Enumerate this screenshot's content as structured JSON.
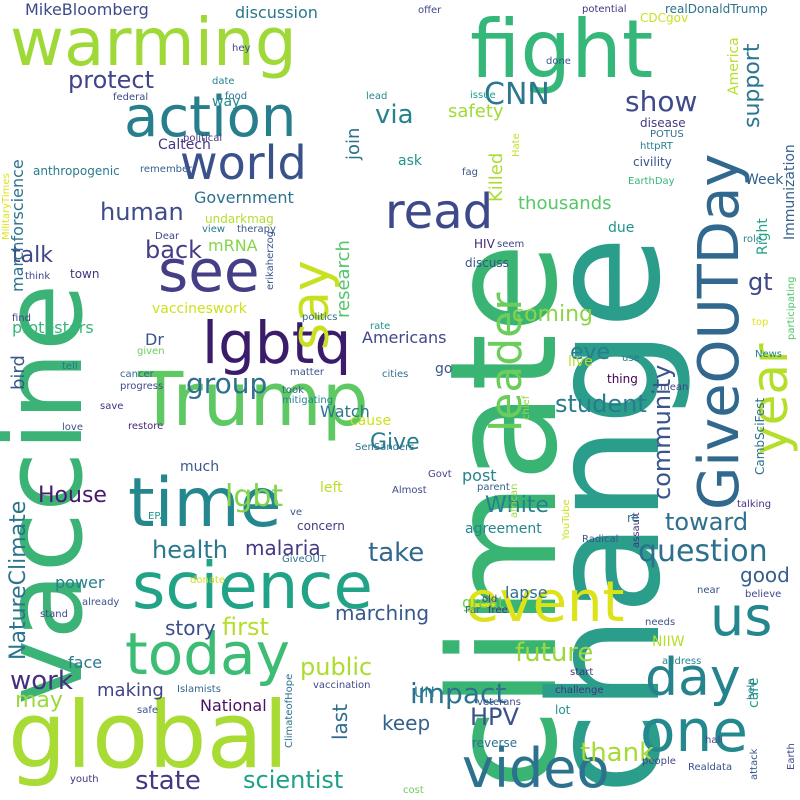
{
  "words": [
    {
      "text": "climate",
      "color": "#3ab473"
    },
    {
      "text": "change",
      "color": "#2a9d8b"
    },
    {
      "text": "vaccine",
      "color": "#3bb377"
    },
    {
      "text": "global",
      "color": "#a8db34"
    },
    {
      "text": "warming",
      "color": "#9fd938"
    },
    {
      "text": "fight",
      "color": "#35b779"
    },
    {
      "text": "Trump",
      "color": "#5ec962"
    },
    {
      "text": "science",
      "color": "#20a386"
    },
    {
      "text": "GiveOUTDay",
      "color": "#31688e"
    },
    {
      "text": "lgbtq",
      "color": "#3b1c6b"
    },
    {
      "text": "time",
      "color": "#24878e"
    },
    {
      "text": "today",
      "color": "#3dbc74"
    },
    {
      "text": "action",
      "color": "#277f8e"
    },
    {
      "text": "see",
      "color": "#433e85"
    },
    {
      "text": "video",
      "color": "#2c728e"
    },
    {
      "text": "event",
      "color": "#dde318"
    },
    {
      "text": "one",
      "color": "#23898e"
    },
    {
      "text": "say",
      "color": "#c8e020"
    },
    {
      "text": "us",
      "color": "#24878e"
    },
    {
      "text": "read",
      "color": "#3e4989"
    },
    {
      "text": "world",
      "color": "#3b518b"
    },
    {
      "text": "day",
      "color": "#25838e"
    },
    {
      "text": "year",
      "color": "#b5de2b"
    },
    {
      "text": "leader",
      "color": "#6ccd5a"
    },
    {
      "text": "question",
      "color": "#2d708e"
    },
    {
      "text": "community",
      "color": "#39568c"
    },
    {
      "text": "group",
      "color": "#2e6e8e"
    },
    {
      "text": "lgbt",
      "color": "#84d44b"
    },
    {
      "text": "show",
      "color": "#3e4a89"
    },
    {
      "text": "health",
      "color": "#29798e"
    },
    {
      "text": "CNN",
      "color": "#2a778e"
    },
    {
      "text": "impact",
      "color": "#2c728e"
    },
    {
      "text": "take",
      "color": "#31688e"
    },
    {
      "text": "state",
      "color": "#453882"
    },
    {
      "text": "scientist",
      "color": "#1fa088"
    },
    {
      "text": "support",
      "color": "#2a778e"
    },
    {
      "text": "future",
      "color": "#9bd93c"
    },
    {
      "text": "work",
      "color": "#46307e"
    },
    {
      "text": "human",
      "color": "#3e4c8a"
    },
    {
      "text": "protect",
      "color": "#404588"
    },
    {
      "text": "back",
      "color": "#433e85"
    },
    {
      "text": "NatureClimate",
      "color": "#2c738e"
    },
    {
      "text": "Give",
      "color": "#277f8e"
    },
    {
      "text": "student",
      "color": "#287c8e"
    },
    {
      "text": "White",
      "color": "#26828e"
    },
    {
      "text": "House",
      "color": "#48186a"
    },
    {
      "text": "toward",
      "color": "#2d708e"
    },
    {
      "text": "first",
      "color": "#b5de2b"
    },
    {
      "text": "public",
      "color": "#addc30"
    },
    {
      "text": "HPV",
      "color": "#3b518b"
    },
    {
      "text": "thank",
      "color": "#a5db36"
    },
    {
      "text": "via",
      "color": "#26828e"
    },
    {
      "text": "talk",
      "color": "#3f4788"
    },
    {
      "text": "gt",
      "color": "#3e4989"
    },
    {
      "text": "coming",
      "color": "#8bd646"
    },
    {
      "text": "eye",
      "color": "#287d8e"
    },
    {
      "text": "good",
      "color": "#355f8d"
    },
    {
      "text": "marching",
      "color": "#38588c"
    },
    {
      "text": "story",
      "color": "#3d4e8a"
    },
    {
      "text": "malaria",
      "color": "#443983"
    },
    {
      "text": "keep",
      "color": "#33638d"
    },
    {
      "text": "last",
      "color": "#2e6d8e"
    },
    {
      "text": "may",
      "color": "#9bd93c"
    },
    {
      "text": "making",
      "color": "#414487"
    },
    {
      "text": "face",
      "color": "#2a788e"
    },
    {
      "text": "power",
      "color": "#27808e"
    },
    {
      "text": "National",
      "color": "#471164"
    },
    {
      "text": "safety",
      "color": "#a2da37"
    },
    {
      "text": "research",
      "color": "#52c569"
    },
    {
      "text": "Killed",
      "color": "#addc30"
    },
    {
      "text": "thousands",
      "color": "#56c667"
    },
    {
      "text": "join",
      "color": "#2d708e"
    },
    {
      "text": "Government",
      "color": "#2d718e"
    },
    {
      "text": "mRNA",
      "color": "#86d549"
    },
    {
      "text": "Dr",
      "color": "#3b528b"
    },
    {
      "text": "Americans",
      "color": "#3f4889"
    },
    {
      "text": "bird",
      "color": "#38588c"
    },
    {
      "text": "protesters",
      "color": "#35b779"
    },
    {
      "text": "vaccineswork",
      "color": "#cde11d"
    },
    {
      "text": "marchforscience",
      "color": "#2c728e"
    },
    {
      "text": "MikeBloomberg",
      "color": "#3e4a89"
    },
    {
      "text": "discussion",
      "color": "#2a778e"
    },
    {
      "text": "way",
      "color": "#23888e"
    },
    {
      "text": "Caltech",
      "color": "#453781"
    },
    {
      "text": "Watch",
      "color": "#2b758e"
    },
    {
      "text": "cause",
      "color": "#cde11d"
    },
    {
      "text": "much",
      "color": "#39568c"
    },
    {
      "text": "left",
      "color": "#bade28"
    },
    {
      "text": "post",
      "color": "#25848e"
    },
    {
      "text": "lapse",
      "color": "#2c718e"
    },
    {
      "text": "agreement",
      "color": "#24868e"
    },
    {
      "text": "great",
      "color": "#6ccd5a"
    },
    {
      "text": "live",
      "color": "#bade28"
    },
    {
      "text": "go",
      "color": "#39568c"
    },
    {
      "text": "Week",
      "color": "#33628d"
    },
    {
      "text": "Right",
      "color": "#20a486"
    },
    {
      "text": "Immunization",
      "color": "#355f8d"
    },
    {
      "text": "America",
      "color": "#b8de29"
    },
    {
      "text": "care",
      "color": "#1fa187"
    },
    {
      "text": "UN",
      "color": "#277f8e"
    },
    {
      "text": "NIIW",
      "color": "#b5de2b"
    },
    {
      "text": "ask",
      "color": "#20928c"
    },
    {
      "text": "due",
      "color": "#1f948c"
    },
    {
      "text": "concern",
      "color": "#453882"
    },
    {
      "text": "realDonaldTrump",
      "color": "#2c718e"
    },
    {
      "text": "CDCgov",
      "color": "#cae11f"
    },
    {
      "text": "potential",
      "color": "#46337f"
    },
    {
      "text": "offer",
      "color": "#3f4889"
    },
    {
      "text": "issue",
      "color": "#1f9a8a"
    },
    {
      "text": "lead",
      "color": "#23898e"
    },
    {
      "text": "done",
      "color": "#3a548c"
    },
    {
      "text": "disease",
      "color": "#443983"
    },
    {
      "text": "POTUS",
      "color": "#2c728e"
    },
    {
      "text": "httpRT",
      "color": "#27808e"
    },
    {
      "text": "civility",
      "color": "#3b518b"
    },
    {
      "text": "EarthDay",
      "color": "#35b779"
    },
    {
      "text": "Hate",
      "color": "#c0df25"
    },
    {
      "text": "fag",
      "color": "#39568c"
    },
    {
      "text": "seem",
      "color": "#3f4788"
    },
    {
      "text": "HIV",
      "color": "#482878"
    },
    {
      "text": "discuss",
      "color": "#3b528b"
    },
    {
      "text": "role",
      "color": "#25838e"
    },
    {
      "text": "hey",
      "color": "#3f4889"
    },
    {
      "text": "date",
      "color": "#26828e"
    },
    {
      "text": "food",
      "color": "#2c728e"
    },
    {
      "text": "federal",
      "color": "#3e4a89"
    },
    {
      "text": "political",
      "color": "#453781"
    },
    {
      "text": "anthropogenic",
      "color": "#287c8e"
    },
    {
      "text": "remember",
      "color": "#34608d"
    },
    {
      "text": "MilitaryTimes",
      "color": "#dde318"
    },
    {
      "text": "undarkmag",
      "color": "#b5de2b"
    },
    {
      "text": "view",
      "color": "#2a778e"
    },
    {
      "text": "therapy",
      "color": "#38588c"
    },
    {
      "text": "Dear",
      "color": "#3e4989"
    },
    {
      "text": "erikaherzog",
      "color": "#3a548c"
    },
    {
      "text": "town",
      "color": "#46337f"
    },
    {
      "text": "think",
      "color": "#404588"
    },
    {
      "text": "find",
      "color": "#414287"
    },
    {
      "text": "politics",
      "color": "#2e6e8e"
    },
    {
      "text": "rate",
      "color": "#20928c"
    },
    {
      "text": "given",
      "color": "#6ccd5a"
    },
    {
      "text": "tell",
      "color": "#2b758e"
    },
    {
      "text": "matter",
      "color": "#39568c"
    },
    {
      "text": "cancer",
      "color": "#31688e"
    },
    {
      "text": "progress",
      "color": "#3f4889"
    },
    {
      "text": "took",
      "color": "#33638d"
    },
    {
      "text": "mitigating",
      "color": "#25838e"
    },
    {
      "text": "cities",
      "color": "#2c728e"
    },
    {
      "text": "use",
      "color": "#2a788e"
    },
    {
      "text": "thing",
      "color": "#440154"
    },
    {
      "text": "mean",
      "color": "#3f4788"
    },
    {
      "text": "chief",
      "color": "#9bd93c"
    },
    {
      "text": "News",
      "color": "#25838e"
    },
    {
      "text": "top",
      "color": "#dde318"
    },
    {
      "text": "participating",
      "color": "#52c569"
    },
    {
      "text": "CambSciFest",
      "color": "#2d718e"
    },
    {
      "text": "save",
      "color": "#46307e"
    },
    {
      "text": "restore",
      "color": "#482475"
    },
    {
      "text": "love",
      "color": "#3b528b"
    },
    {
      "text": "SenSanders",
      "color": "#2b748e"
    },
    {
      "text": "Govt",
      "color": "#414487"
    },
    {
      "text": "Almost",
      "color": "#3e4c8a"
    },
    {
      "text": "parent",
      "color": "#34608d"
    },
    {
      "text": "african",
      "color": "#9bd93c"
    },
    {
      "text": "YouTube",
      "color": "#cde11d"
    },
    {
      "text": "talking",
      "color": "#46307e"
    },
    {
      "text": "ve",
      "color": "#3b518b"
    },
    {
      "text": "EPA",
      "color": "#20928c"
    },
    {
      "text": "assault",
      "color": "#46307e"
    },
    {
      "text": "re",
      "color": "#2a788e"
    },
    {
      "text": "Radical",
      "color": "#38588c"
    },
    {
      "text": "GiveOUT",
      "color": "#2c728e"
    },
    {
      "text": "donate",
      "color": "#cde11d"
    },
    {
      "text": "already",
      "color": "#3b528b"
    },
    {
      "text": "stand",
      "color": "#3f4788"
    },
    {
      "text": "near",
      "color": "#3b518b"
    },
    {
      "text": "believe",
      "color": "#3f4889"
    },
    {
      "text": "old",
      "color": "#414287"
    },
    {
      "text": "Far",
      "color": "#2c718e"
    },
    {
      "text": "free",
      "color": "#46307e"
    },
    {
      "text": "needs",
      "color": "#3b528b"
    },
    {
      "text": "address",
      "color": "#25848e"
    },
    {
      "text": "start",
      "color": "#46337f"
    },
    {
      "text": "ClimateofHope",
      "color": "#2c728e"
    },
    {
      "text": "Islamists",
      "color": "#31688e"
    },
    {
      "text": "vaccination",
      "color": "#3f4889"
    },
    {
      "text": "safe",
      "color": "#3b528b"
    },
    {
      "text": "veterans",
      "color": "#3e4c8a"
    },
    {
      "text": "challenge",
      "color": "#46337f"
    },
    {
      "text": "lot",
      "color": "#20928c"
    },
    {
      "text": "help",
      "color": "#2a788e"
    },
    {
      "text": "hall",
      "color": "#414487"
    },
    {
      "text": "attack",
      "color": "#38588c"
    },
    {
      "text": "Earth",
      "color": "#3e4989"
    },
    {
      "text": "reverse",
      "color": "#2c718e"
    },
    {
      "text": "people",
      "color": "#3f4788"
    },
    {
      "text": "Realdata",
      "color": "#3b518b"
    },
    {
      "text": "youth",
      "color": "#46337f"
    },
    {
      "text": "cost",
      "color": "#6ccd5a"
    }
  ]
}
